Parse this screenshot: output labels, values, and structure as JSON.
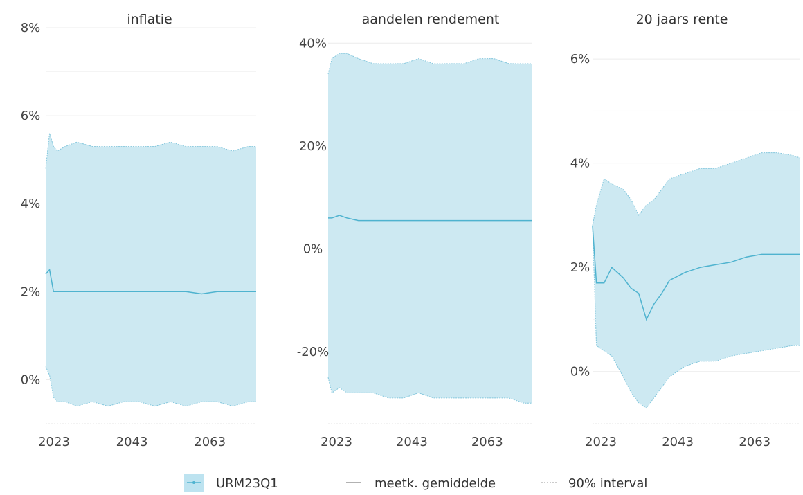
{
  "colors": {
    "band_fill": "#cde9f2",
    "band_edge": "#82c6dc",
    "mean_line": "#4fb3cf",
    "grid": "#ececec",
    "legend_swatch": "#bde3f0"
  },
  "legend": {
    "items": [
      {
        "label": "URM23Q1",
        "kind": "swatch"
      },
      {
        "label": "meetk. gemiddelde",
        "kind": "solid-line"
      },
      {
        "label": "90% interval",
        "kind": "dotted-line"
      }
    ]
  },
  "chart_data": [
    {
      "type": "area",
      "title": "inflatie",
      "x_ticks": [
        2023,
        2043,
        2063
      ],
      "x_range": [
        2023,
        2077
      ],
      "y_ticks": [
        0,
        2,
        4,
        6,
        8
      ],
      "y_tick_labels": [
        "0%",
        "2%",
        "4%",
        "6%",
        "8%"
      ],
      "ylim": [
        -1,
        8
      ],
      "grid": true,
      "x": [
        2023,
        2024,
        2025,
        2026,
        2028,
        2031,
        2035,
        2039,
        2043,
        2047,
        2051,
        2055,
        2059,
        2063,
        2067,
        2071,
        2075,
        2077
      ],
      "mean": [
        2.4,
        2.5,
        2.0,
        2.0,
        2.0,
        2.0,
        2.0,
        2.0,
        2.0,
        2.0,
        2.0,
        2.0,
        2.0,
        1.95,
        2.0,
        2.0,
        2.0,
        2.0
      ],
      "upper": [
        4.8,
        5.6,
        5.3,
        5.2,
        5.3,
        5.4,
        5.3,
        5.3,
        5.3,
        5.3,
        5.3,
        5.4,
        5.3,
        5.3,
        5.3,
        5.2,
        5.3,
        5.3
      ],
      "lower": [
        0.3,
        0.1,
        -0.4,
        -0.5,
        -0.5,
        -0.6,
        -0.5,
        -0.6,
        -0.5,
        -0.5,
        -0.6,
        -0.5,
        -0.6,
        -0.5,
        -0.5,
        -0.6,
        -0.5,
        -0.5
      ]
    },
    {
      "type": "area",
      "title": "aandelen rendement",
      "x_ticks": [
        2023,
        2043,
        2063
      ],
      "x_range": [
        2023,
        2077
      ],
      "y_ticks": [
        -20,
        0,
        20,
        40
      ],
      "y_tick_labels": [
        "-20%",
        "0%",
        "20%",
        "40%"
      ],
      "ylim": [
        -34,
        43
      ],
      "grid": true,
      "x": [
        2023,
        2024,
        2026,
        2028,
        2031,
        2035,
        2039,
        2043,
        2047,
        2051,
        2055,
        2059,
        2063,
        2067,
        2071,
        2075,
        2077
      ],
      "mean": [
        6,
        6,
        6.5,
        6,
        5.5,
        5.5,
        5.5,
        5.5,
        5.5,
        5.5,
        5.5,
        5.5,
        5.5,
        5.5,
        5.5,
        5.5,
        5.5
      ],
      "upper": [
        34,
        37,
        38,
        38,
        37,
        36,
        36,
        36,
        37,
        36,
        36,
        36,
        37,
        37,
        36,
        36,
        36
      ],
      "lower": [
        -25,
        -28,
        -27,
        -28,
        -28,
        -28,
        -29,
        -29,
        -28,
        -29,
        -29,
        -29,
        -29,
        -29,
        -29,
        -30,
        -30
      ]
    },
    {
      "type": "area",
      "title": "20 jaars rente",
      "x_ticks": [
        2023,
        2043,
        2063
      ],
      "x_range": [
        2023,
        2077
      ],
      "y_ticks": [
        0,
        2,
        4,
        6
      ],
      "y_tick_labels": [
        "0%",
        "2%",
        "4%",
        "6%"
      ],
      "ylim": [
        -1,
        6.6
      ],
      "grid": true,
      "x": [
        2023,
        2024,
        2026,
        2028,
        2031,
        2033,
        2035,
        2037,
        2039,
        2041,
        2043,
        2047,
        2051,
        2055,
        2059,
        2063,
        2067,
        2071,
        2075,
        2077
      ],
      "mean": [
        2.8,
        1.7,
        1.7,
        2.0,
        1.8,
        1.6,
        1.5,
        1.0,
        1.3,
        1.5,
        1.75,
        1.9,
        2.0,
        2.05,
        2.1,
        2.2,
        2.25,
        2.25,
        2.25,
        2.25
      ],
      "upper": [
        2.8,
        3.2,
        3.7,
        3.6,
        3.5,
        3.3,
        3.0,
        3.2,
        3.3,
        3.5,
        3.7,
        3.8,
        3.9,
        3.9,
        4.0,
        4.1,
        4.2,
        4.2,
        4.15,
        4.1
      ],
      "lower": [
        2.8,
        0.5,
        0.4,
        0.3,
        -0.1,
        -0.4,
        -0.6,
        -0.7,
        -0.5,
        -0.3,
        -0.1,
        0.1,
        0.2,
        0.2,
        0.3,
        0.35,
        0.4,
        0.45,
        0.5,
        0.5
      ]
    }
  ]
}
